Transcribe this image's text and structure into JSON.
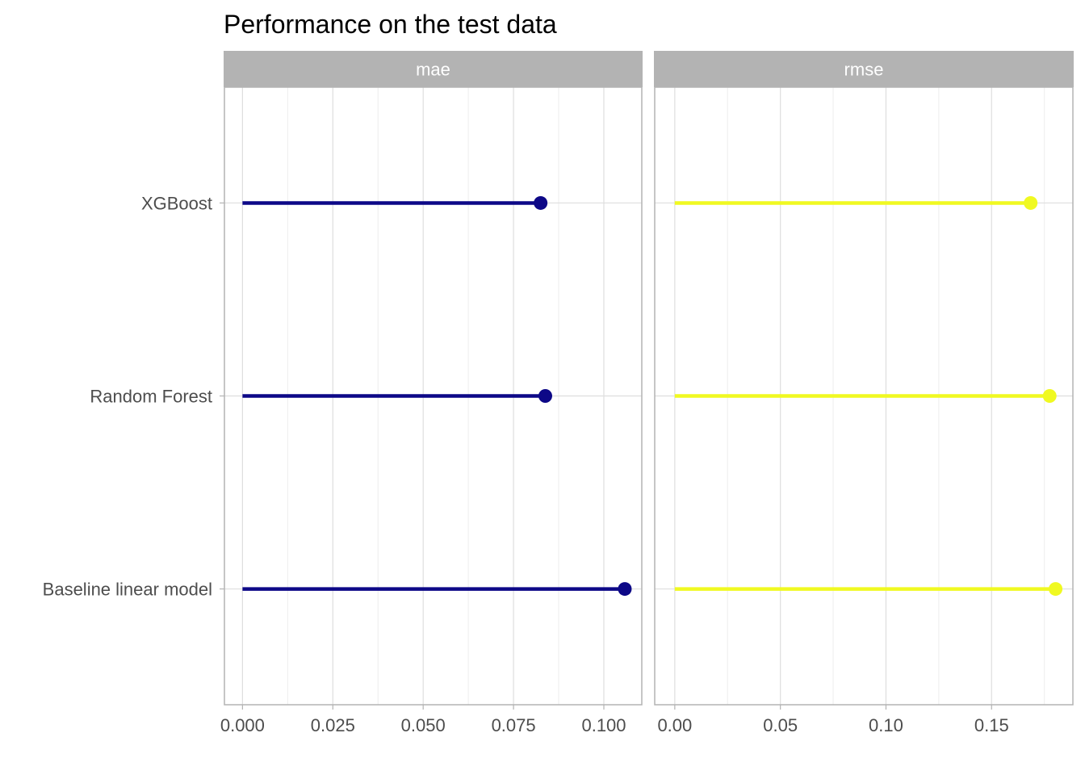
{
  "chart_data": {
    "type": "lollipop",
    "title": "Performance on the test data",
    "categories": [
      "XGBoost",
      "Random Forest",
      "Baseline linear model"
    ],
    "facets": [
      {
        "name": "mae",
        "color": "#0d0887",
        "xlim": [
          -0.005,
          0.1105
        ],
        "ticks": [
          "0.000",
          "0.025",
          "0.050",
          "0.075",
          "0.100"
        ],
        "values": [
          0.0825,
          0.0838,
          0.1058
        ]
      },
      {
        "name": "rmse",
        "color": "#f0f921",
        "xlim": [
          -0.0095,
          0.1885
        ],
        "ticks": [
          "0.00",
          "0.05",
          "0.10",
          "0.15"
        ],
        "values": [
          0.1685,
          0.1775,
          0.1803
        ]
      }
    ],
    "grid": true,
    "legend": "none"
  }
}
